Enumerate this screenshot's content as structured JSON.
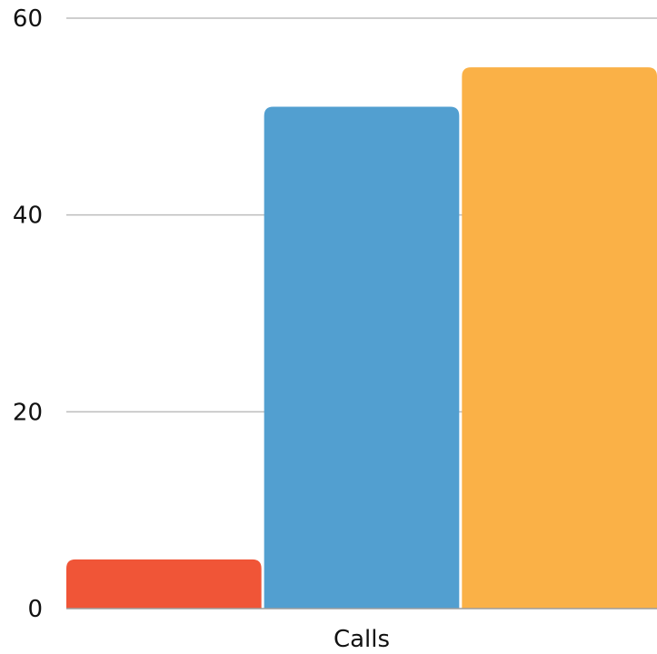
{
  "chart_data": {
    "type": "bar",
    "categories": [
      "Calls"
    ],
    "series": [
      {
        "values": [
          5
        ],
        "color": "#f05537"
      },
      {
        "values": [
          51
        ],
        "color": "#529fd0"
      },
      {
        "values": [
          55
        ],
        "color": "#fab147"
      }
    ],
    "yticks": [
      "0",
      "20",
      "40",
      "60"
    ],
    "ylim": [
      0,
      60
    ],
    "grid": true,
    "legend": "none",
    "title": "",
    "xlabel": "",
    "ylabel": ""
  }
}
